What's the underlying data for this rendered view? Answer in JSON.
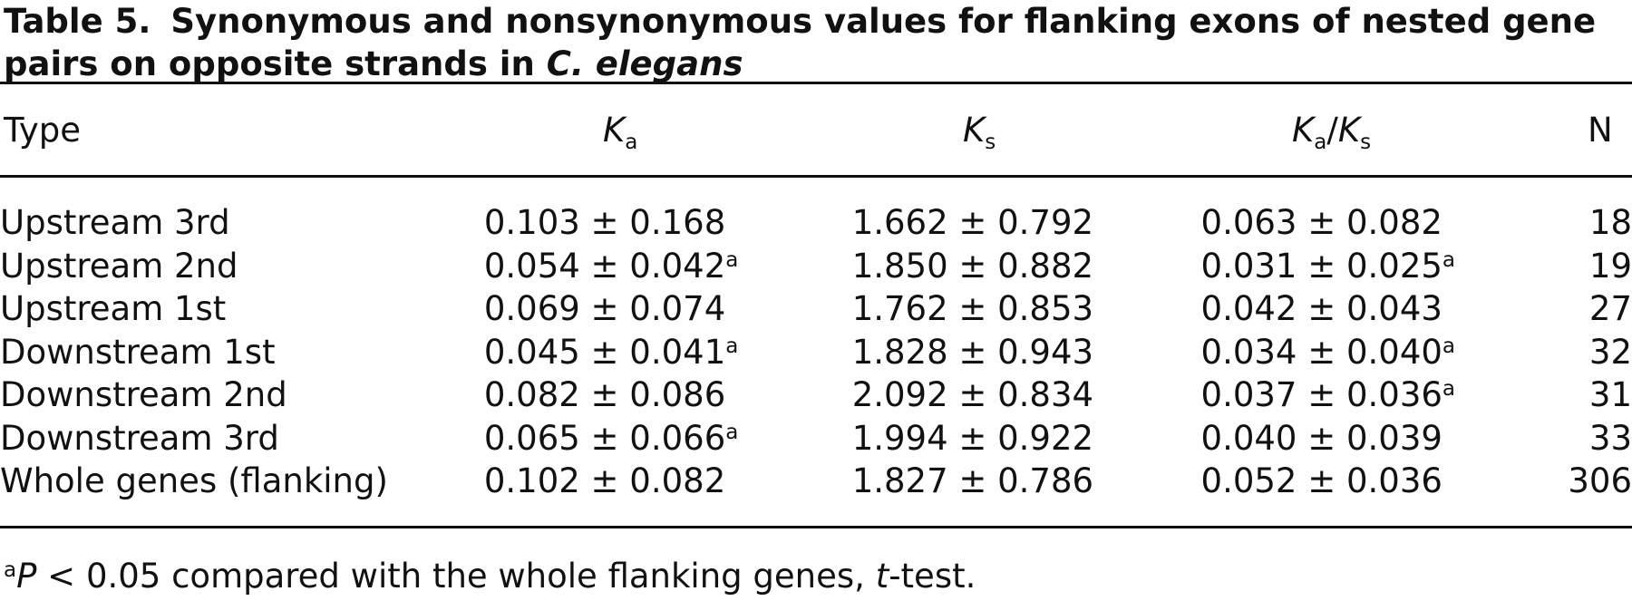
{
  "caption": {
    "label": "Table 5.",
    "text": "Synonymous and nonsynonymous values for flanking exons of nested gene pairs on opposite strands in",
    "species": "C. elegans"
  },
  "columns": {
    "type": "Type",
    "ka": {
      "main": "K",
      "sub": "a"
    },
    "ks": {
      "main": "K",
      "sub": "s"
    },
    "kaks": {
      "main1": "K",
      "sub1": "a",
      "slash": "/",
      "main2": "K",
      "sub2": "s"
    },
    "n": "N"
  },
  "rows": [
    {
      "type": "Upstream 3rd",
      "ka": "0.103 ± 0.168",
      "ka_mark": "",
      "ks": "1.662 ± 0.792",
      "kaks": "0.063 ± 0.082",
      "kaks_mark": "",
      "n": "18"
    },
    {
      "type": "Upstream 2nd",
      "ka": "0.054 ± 0.042",
      "ka_mark": "a",
      "ks": "1.850 ± 0.882",
      "kaks": "0.031 ± 0.025",
      "kaks_mark": "a",
      "n": "19"
    },
    {
      "type": "Upstream 1st",
      "ka": "0.069 ± 0.074",
      "ka_mark": "",
      "ks": "1.762 ± 0.853",
      "kaks": "0.042 ± 0.043",
      "kaks_mark": "",
      "n": "27"
    },
    {
      "type": "Downstream 1st",
      "ka": "0.045 ± 0.041",
      "ka_mark": "a",
      "ks": "1.828 ± 0.943",
      "kaks": "0.034 ± 0.040",
      "kaks_mark": "a",
      "n": "32"
    },
    {
      "type": "Downstream 2nd",
      "ka": "0.082 ± 0.086",
      "ka_mark": "",
      "ks": "2.092 ± 0.834",
      "kaks": "0.037 ± 0.036",
      "kaks_mark": "a",
      "n": "31"
    },
    {
      "type": "Downstream 3rd",
      "ka": "0.065 ± 0.066",
      "ka_mark": "a",
      "ks": "1.994 ± 0.922",
      "kaks": "0.040 ± 0.039",
      "kaks_mark": "",
      "n": "33"
    },
    {
      "type": "Whole genes (flanking)",
      "ka": "0.102 ± 0.082",
      "ka_mark": "",
      "ks": "1.827 ± 0.786",
      "kaks": "0.052 ± 0.036",
      "kaks_mark": "",
      "n": "306"
    }
  ],
  "footnote": {
    "mark": "a",
    "p": "P",
    "text1": " < 0.05 compared with the whole flanking genes, ",
    "t": "t",
    "text2": "-test."
  }
}
